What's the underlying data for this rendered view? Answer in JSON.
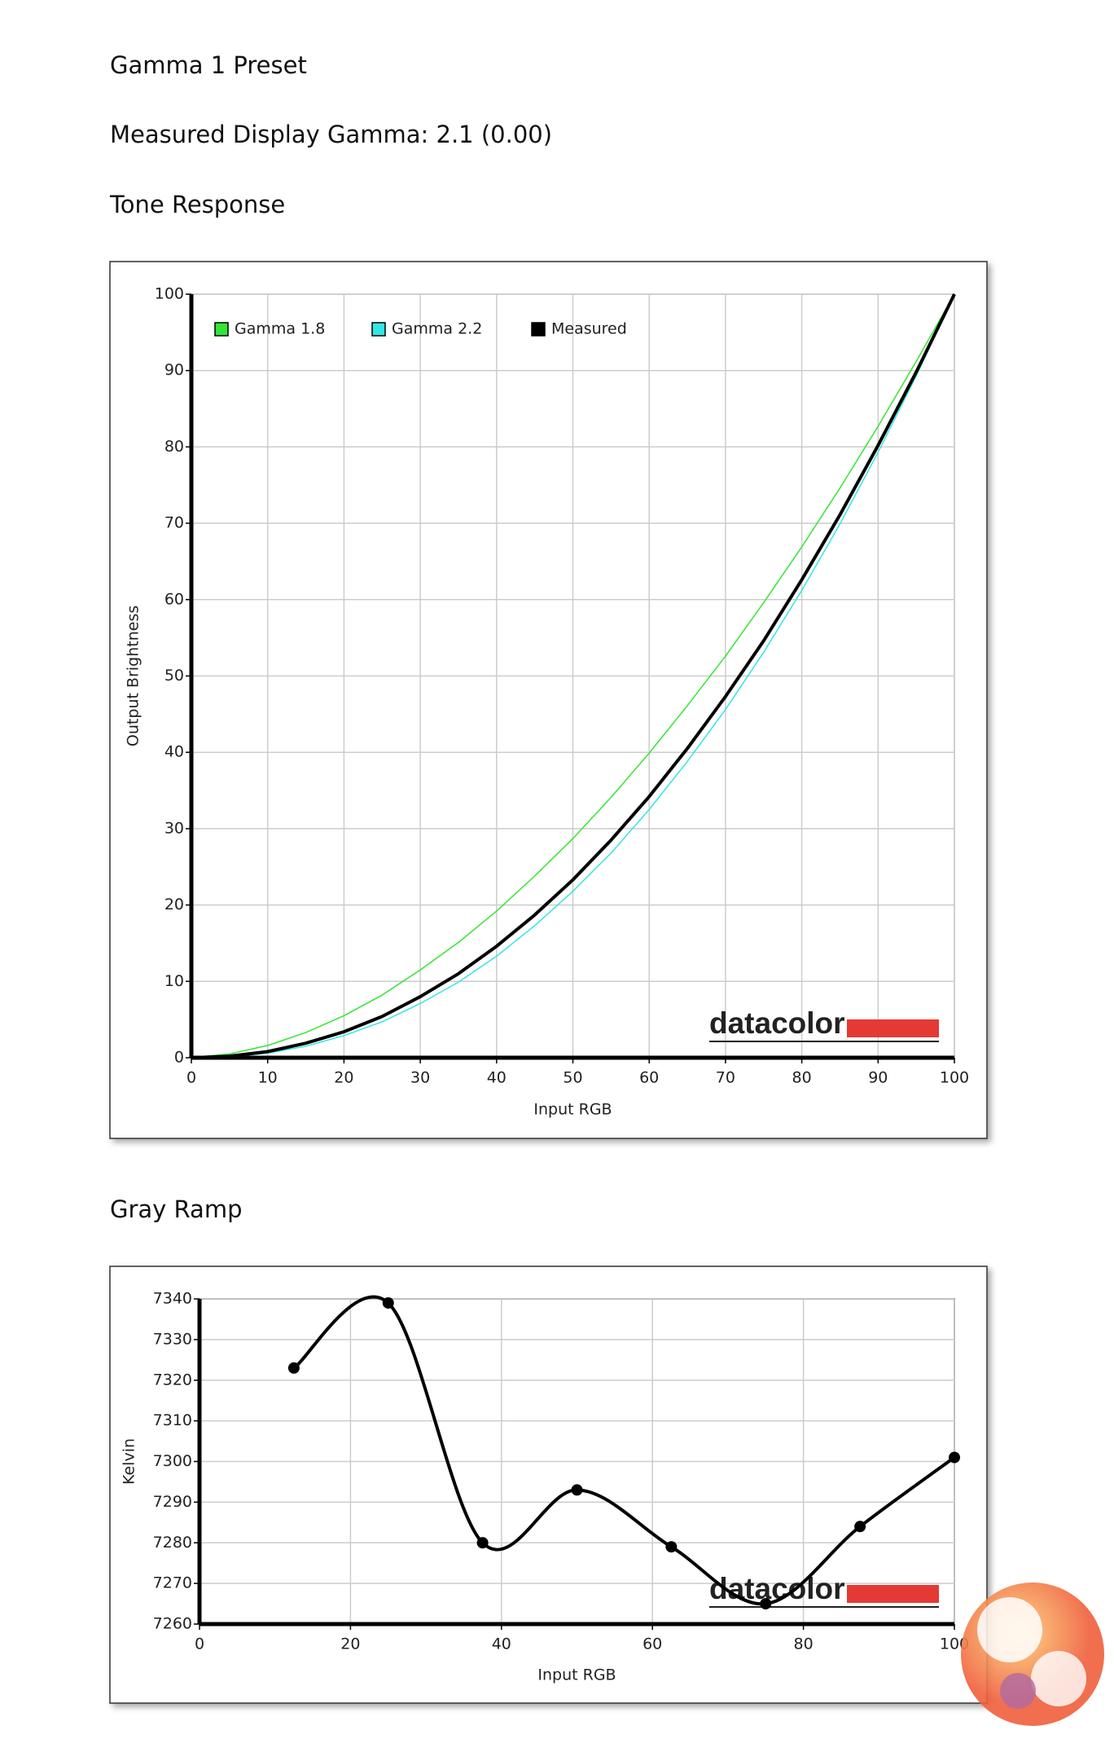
{
  "headings": [
    "Gamma 1 Preset",
    "Measured Display Gamma: 2.1 (0.00)",
    "Tone Response",
    "Gray Ramp"
  ],
  "chart_data": [
    {
      "type": "line",
      "x_label": "Input RGB",
      "y_label": "Output Brightness",
      "watermark": "datacolor",
      "x": [
        0,
        5,
        10,
        15,
        20,
        25,
        30,
        35,
        40,
        45,
        50,
        55,
        60,
        65,
        70,
        75,
        80,
        85,
        90,
        95,
        100
      ],
      "series": [
        {
          "name": "Gamma 1.8",
          "color": "#33e633",
          "width": 1.5,
          "values": [
            0,
            0.5,
            1.6,
            3.3,
            5.5,
            8.2,
            11.5,
            15.1,
            19.2,
            23.8,
            28.7,
            34.1,
            39.9,
            46.1,
            52.6,
            59.6,
            66.9,
            74.6,
            82.7,
            91.2,
            100
          ]
        },
        {
          "name": "Gamma 2.2",
          "color": "#33e6e6",
          "width": 1.5,
          "values": [
            0,
            0.1,
            0.6,
            1.5,
            2.9,
            4.7,
            7.1,
            9.9,
            13.3,
            17.3,
            21.8,
            26.8,
            32.5,
            38.8,
            45.6,
            53.1,
            61.2,
            69.9,
            79.3,
            89.3,
            100
          ]
        },
        {
          "name": "Measured",
          "color": "#000000",
          "width": 4,
          "values": [
            0,
            0.2,
            0.8,
            1.9,
            3.4,
            5.4,
            8.0,
            11.0,
            14.6,
            18.7,
            23.3,
            28.5,
            34.2,
            40.5,
            47.3,
            54.6,
            62.6,
            71.1,
            80.2,
            89.8,
            100
          ]
        }
      ],
      "xlim": [
        0,
        100
      ],
      "xticks": [
        0,
        10,
        20,
        30,
        40,
        50,
        60,
        70,
        80,
        90,
        100
      ],
      "ylim": [
        0,
        100
      ],
      "yticks": [
        0,
        10,
        20,
        30,
        40,
        50,
        60,
        70,
        80,
        90,
        100
      ],
      "grid": true,
      "legend": "top-left",
      "smooth": false,
      "markers": false
    },
    {
      "type": "line",
      "x_label": "Input RGB",
      "y_label": "Kelvin",
      "watermark": "datacolor",
      "x": [
        12.5,
        25,
        37.5,
        50,
        62.5,
        75,
        87.5,
        100
      ],
      "series": [
        {
          "color": "#000000",
          "width": 4,
          "values": [
            7323,
            7339,
            7280,
            7293,
            7279,
            7265,
            7284,
            7301
          ]
        }
      ],
      "xlim": [
        0,
        100
      ],
      "xticks": [
        0,
        20,
        40,
        60,
        80,
        100
      ],
      "ylim": [
        7260,
        7340
      ],
      "yticks": [
        7260,
        7270,
        7280,
        7290,
        7300,
        7310,
        7320,
        7330,
        7340
      ],
      "grid": true,
      "smooth": true,
      "markers": true
    }
  ]
}
